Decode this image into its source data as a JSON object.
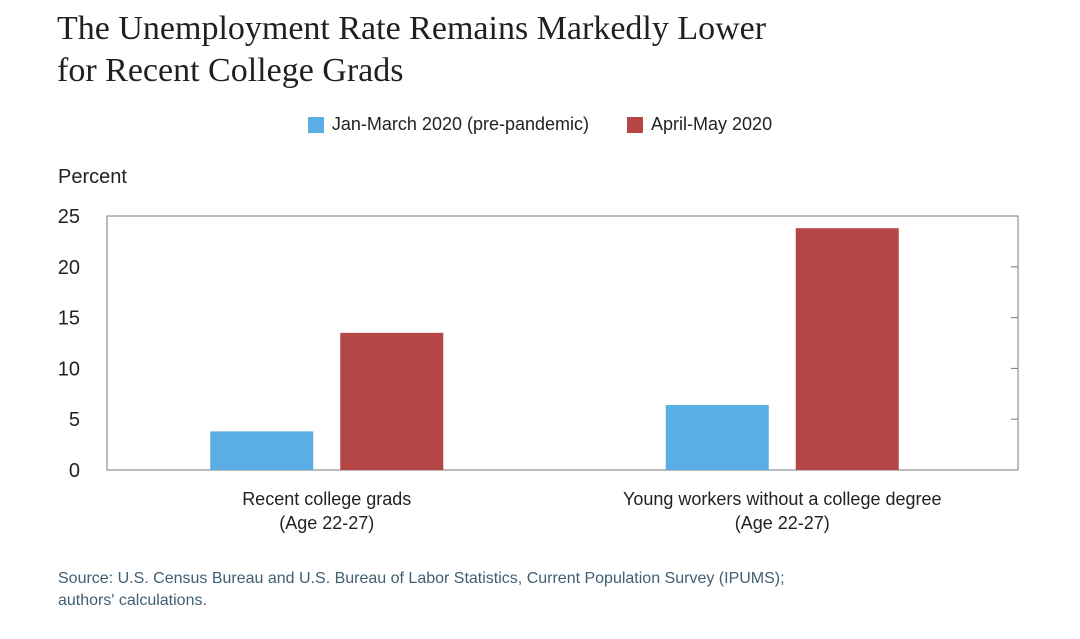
{
  "header": {
    "title_line1": "The Unemployment Rate Remains Markedly Lower",
    "title_line2": "for Recent College Grads"
  },
  "source": {
    "line1": "Source: U.S. Census Bureau and U.S. Bureau of Labor Statistics, Current Population Survey (IPUMS);",
    "line2": "authors' calculations."
  },
  "chart_data": {
    "type": "bar",
    "title": "The Unemployment Rate Remains Markedly Lower for Recent College Grads",
    "ylabel": "Percent",
    "xlabel": "",
    "ylim": [
      0,
      25
    ],
    "yticks": [
      0,
      5,
      10,
      15,
      20,
      25
    ],
    "grid": false,
    "legend_position": "top-center",
    "categories": [
      [
        "Recent college grads",
        "(Age 22-27)"
      ],
      [
        "Young workers without a college degree",
        "(Age 22-27)"
      ]
    ],
    "series": [
      {
        "name": "Jan-March 2020 (pre-pandemic)",
        "color": "#5baee3",
        "values": [
          3.8,
          6.4
        ]
      },
      {
        "name": "April-May 2020",
        "color": "#b54646",
        "values": [
          13.5,
          23.8
        ]
      }
    ]
  }
}
